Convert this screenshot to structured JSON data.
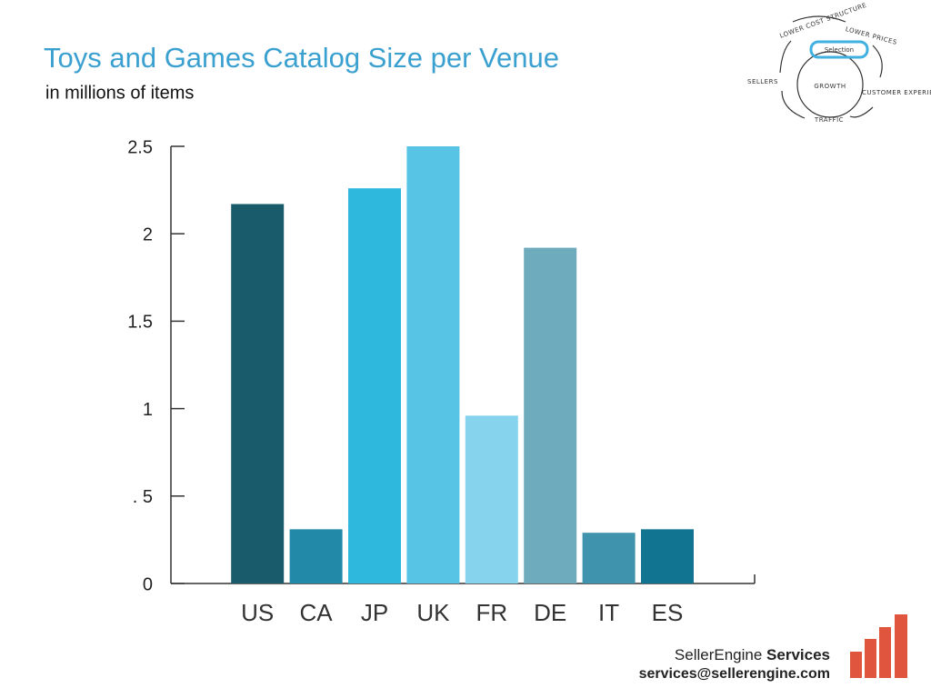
{
  "chart_data": {
    "type": "bar",
    "title": "Toys and Games Catalog Size per Venue",
    "subtitle": "in millions of items",
    "categories": [
      "US",
      "CA",
      "JP",
      "UK",
      "FR",
      "DE",
      "IT",
      "ES"
    ],
    "values": [
      2.17,
      0.31,
      2.26,
      2.5,
      0.96,
      1.92,
      0.29,
      0.31
    ],
    "colors": [
      "#1a5b6b",
      "#2289a8",
      "#2eb8de",
      "#57c4e5",
      "#86d3ee",
      "#6eabbd",
      "#3f93ad",
      "#117591"
    ],
    "ylim": [
      0,
      2.5
    ],
    "yticks": [
      0,
      {
        "value": 0.5,
        "label": ". 5"
      },
      1,
      1.5,
      2,
      2.5
    ],
    "grid": false
  },
  "diagram": {
    "labels": [
      "LOWER COST STRUCTURE",
      "LOWER PRICES",
      "Selection",
      "SELLERS",
      "GROWTH",
      "CUSTOMER EXPERIENCE",
      "TRAFFIC"
    ]
  },
  "footer": {
    "brand": "SellerEngine",
    "service": "Services",
    "email": "services@sellerengine.com"
  }
}
